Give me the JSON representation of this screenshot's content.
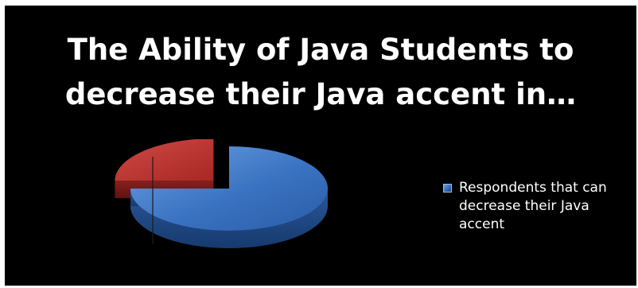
{
  "chart_data": {
    "type": "pie",
    "title": "The Ability of Java Students to\ndecrease their Java accent in…",
    "slices": [
      {
        "name": "Respondents that can decrease their Java accent",
        "value": 75,
        "color": "#2f66b4",
        "exploded": false
      },
      {
        "name": "",
        "value": 25,
        "color": "#b52f2c",
        "exploded": true
      }
    ],
    "legend": {
      "placement": "right",
      "entries": [
        "Respondents that can decrease their Java accent"
      ]
    },
    "style": "3d"
  },
  "colors": {
    "background": "#000000",
    "text": "#ffffff",
    "slice_blue": "#2f66b4",
    "slice_red": "#b52f2c"
  }
}
